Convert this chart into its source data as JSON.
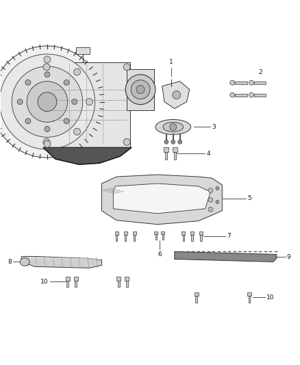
{
  "bg_color": "#ffffff",
  "fig_width": 4.38,
  "fig_height": 5.33,
  "dpi": 100,
  "line_color": "#333333",
  "part_fill": "#e8e8e8",
  "part_stroke": "#333333",
  "dark_fill": "#555555",
  "label_fontsize": 6.5
}
